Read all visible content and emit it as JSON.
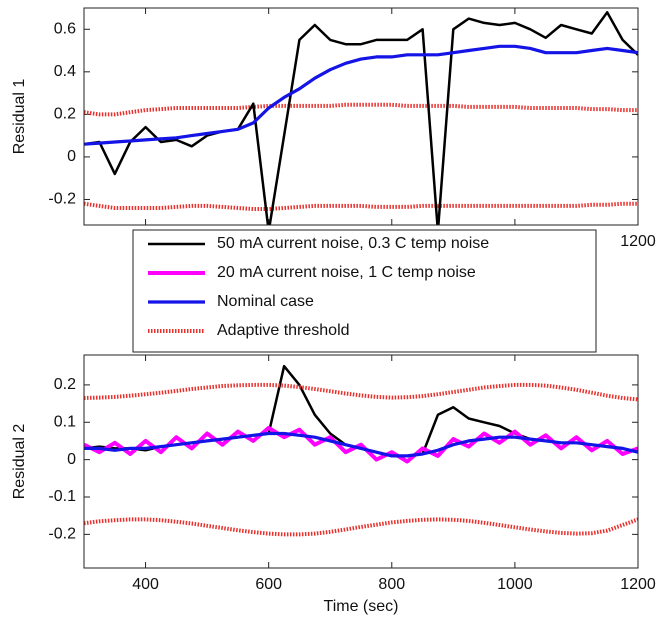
{
  "chart_data": [
    {
      "type": "line",
      "y_label": "Residual 1",
      "x": [
        300,
        325,
        350,
        375,
        400,
        425,
        450,
        475,
        500,
        525,
        550,
        575,
        600,
        625,
        650,
        675,
        700,
        725,
        750,
        775,
        800,
        825,
        850,
        875,
        900,
        925,
        950,
        975,
        1000,
        1025,
        1050,
        1075,
        1100,
        1125,
        1150,
        1175,
        1200
      ],
      "xlim": [
        300,
        1200
      ],
      "xticks": [
        400,
        600,
        800,
        1000,
        1200
      ],
      "ylim": [
        -0.32,
        0.7
      ],
      "yticks": [
        -0.2,
        0,
        0.2,
        0.4,
        0.6
      ],
      "series": [
        {
          "color": "#e8302c",
          "style": "dotted",
          "upper": [
            0.21,
            0.2,
            0.2,
            0.21,
            0.22,
            0.225,
            0.23,
            0.23,
            0.23,
            0.23,
            0.23,
            0.235,
            0.24,
            0.24,
            0.24,
            0.24,
            0.24,
            0.245,
            0.245,
            0.245,
            0.245,
            0.24,
            0.24,
            0.24,
            0.24,
            0.235,
            0.235,
            0.235,
            0.235,
            0.23,
            0.23,
            0.23,
            0.23,
            0.225,
            0.225,
            0.22,
            0.22
          ],
          "lower": [
            -0.22,
            -0.23,
            -0.24,
            -0.24,
            -0.24,
            -0.24,
            -0.235,
            -0.23,
            -0.23,
            -0.235,
            -0.24,
            -0.245,
            -0.245,
            -0.24,
            -0.235,
            -0.23,
            -0.23,
            -0.23,
            -0.23,
            -0.235,
            -0.235,
            -0.235,
            -0.23,
            -0.23,
            -0.23,
            -0.23,
            -0.23,
            -0.23,
            -0.23,
            -0.23,
            -0.23,
            -0.23,
            -0.23,
            -0.225,
            -0.225,
            -0.22,
            -0.22
          ]
        },
        {
          "color": "#000000",
          "values": [
            0.06,
            0.07,
            -0.08,
            0.07,
            0.14,
            0.07,
            0.08,
            0.05,
            0.1,
            0.12,
            0.13,
            0.25,
            -0.35,
            0.1,
            0.55,
            0.62,
            0.55,
            0.53,
            0.53,
            0.55,
            0.55,
            0.55,
            0.6,
            -0.35,
            0.6,
            0.65,
            0.63,
            0.62,
            0.63,
            0.6,
            0.56,
            0.62,
            0.6,
            0.58,
            0.68,
            0.55,
            0.48
          ]
        },
        {
          "color": "#1414e6",
          "values": [
            0.06,
            0.065,
            0.07,
            0.075,
            0.08,
            0.085,
            0.09,
            0.1,
            0.11,
            0.12,
            0.13,
            0.16,
            0.23,
            0.28,
            0.32,
            0.37,
            0.41,
            0.44,
            0.46,
            0.47,
            0.47,
            0.48,
            0.48,
            0.48,
            0.49,
            0.5,
            0.51,
            0.52,
            0.52,
            0.51,
            0.49,
            0.49,
            0.49,
            0.5,
            0.51,
            0.5,
            0.49
          ]
        }
      ]
    },
    {
      "type": "line",
      "y_label": "Residual 2",
      "x_label": "Time (sec)",
      "x": [
        300,
        325,
        350,
        375,
        400,
        425,
        450,
        475,
        500,
        525,
        550,
        575,
        600,
        625,
        650,
        675,
        700,
        725,
        750,
        775,
        800,
        825,
        850,
        875,
        900,
        925,
        950,
        975,
        1000,
        1025,
        1050,
        1075,
        1100,
        1125,
        1150,
        1175,
        1200
      ],
      "xlim": [
        300,
        1200
      ],
      "xticks": [
        400,
        600,
        800,
        1000,
        1200
      ],
      "ylim": [
        -0.29,
        0.28
      ],
      "yticks": [
        -0.2,
        -0.1,
        0,
        0.1,
        0.2
      ],
      "series": [
        {
          "name": "50 mA current noise, 0.3 C temp noise",
          "color": "#000000",
          "values": [
            0.03,
            0.035,
            0.03,
            0.03,
            0.025,
            0.035,
            0.04,
            0.045,
            0.05,
            0.055,
            0.06,
            0.065,
            0.07,
            0.25,
            0.2,
            0.12,
            0.07,
            0.04,
            0.03,
            0.02,
            0.01,
            0.01,
            0.015,
            0.12,
            0.14,
            0.11,
            0.1,
            0.09,
            0.07,
            0.055,
            0.05,
            0.045,
            0.045,
            0.04,
            0.035,
            0.03,
            0.02
          ]
        },
        {
          "name": "20 mA current noise, 1 C temp noise",
          "color": "#ff00ff",
          "values": [
            0.04,
            0.02,
            0.045,
            0.015,
            0.05,
            0.02,
            0.06,
            0.03,
            0.07,
            0.04,
            0.075,
            0.05,
            0.085,
            0.06,
            0.08,
            0.04,
            0.06,
            0.02,
            0.04,
            0.0,
            0.02,
            -0.005,
            0.03,
            0.01,
            0.055,
            0.035,
            0.07,
            0.045,
            0.075,
            0.04,
            0.065,
            0.03,
            0.06,
            0.025,
            0.05,
            0.015,
            0.03
          ]
        },
        {
          "name": "Nominal case",
          "color": "#1414e6",
          "values": [
            0.03,
            0.03,
            0.025,
            0.03,
            0.03,
            0.035,
            0.04,
            0.045,
            0.05,
            0.055,
            0.06,
            0.065,
            0.07,
            0.07,
            0.065,
            0.06,
            0.05,
            0.04,
            0.03,
            0.02,
            0.01,
            0.01,
            0.015,
            0.025,
            0.04,
            0.05,
            0.055,
            0.06,
            0.06,
            0.055,
            0.05,
            0.045,
            0.045,
            0.04,
            0.035,
            0.03,
            0.02
          ]
        },
        {
          "name": "Adaptive threshold",
          "color": "#e8302c",
          "style": "dotted",
          "upper": [
            0.165,
            0.166,
            0.168,
            0.171,
            0.175,
            0.179,
            0.184,
            0.189,
            0.193,
            0.197,
            0.199,
            0.2,
            0.2,
            0.198,
            0.194,
            0.189,
            0.183,
            0.177,
            0.172,
            0.168,
            0.166,
            0.167,
            0.17,
            0.175,
            0.181,
            0.187,
            0.193,
            0.197,
            0.2,
            0.2,
            0.198,
            0.193,
            0.187,
            0.179,
            0.171,
            0.165,
            0.161
          ],
          "lower": [
            -0.17,
            -0.165,
            -0.162,
            -0.16,
            -0.16,
            -0.162,
            -0.166,
            -0.171,
            -0.177,
            -0.183,
            -0.189,
            -0.194,
            -0.198,
            -0.2,
            -0.2,
            -0.198,
            -0.193,
            -0.187,
            -0.18,
            -0.174,
            -0.168,
            -0.164,
            -0.161,
            -0.16,
            -0.161,
            -0.164,
            -0.169,
            -0.175,
            -0.181,
            -0.187,
            -0.192,
            -0.196,
            -0.198,
            -0.197,
            -0.19,
            -0.175,
            -0.16
          ]
        }
      ]
    }
  ]
}
